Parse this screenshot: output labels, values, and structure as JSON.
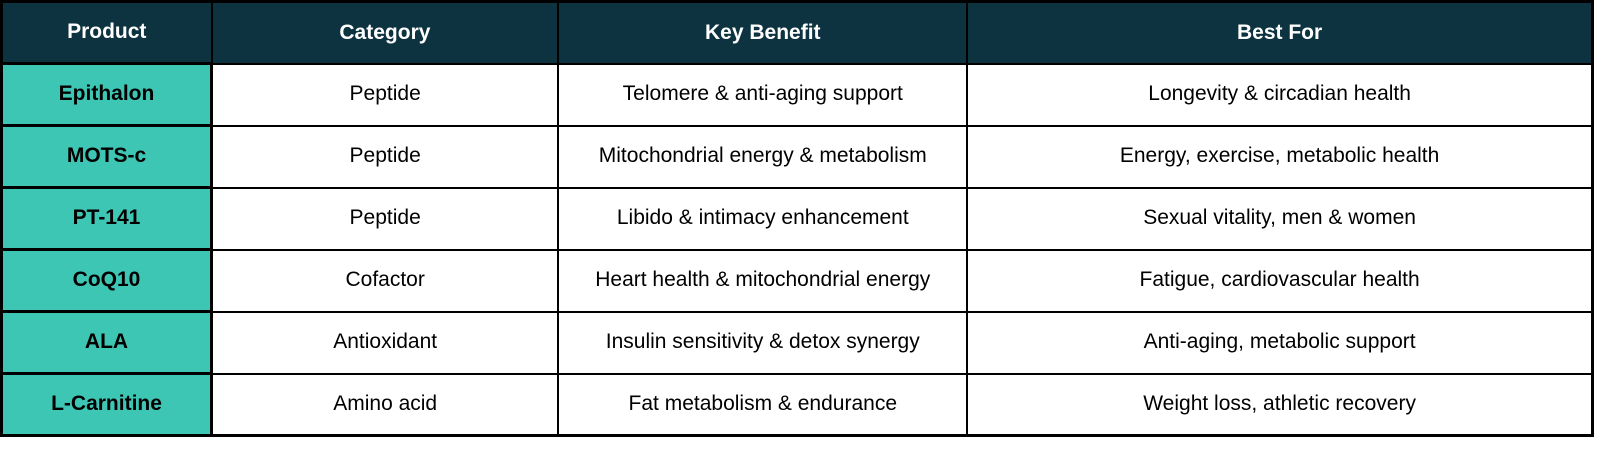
{
  "table": {
    "columns": [
      {
        "label": "Product"
      },
      {
        "label": "Category"
      },
      {
        "label": "Key Benefit"
      },
      {
        "label": "Best For"
      }
    ],
    "rows": [
      {
        "product": "Epithalon",
        "category": "Peptide",
        "key_benefit": "Telomere & anti-aging support",
        "best_for": "Longevity & circadian health"
      },
      {
        "product": "MOTS-c",
        "category": "Peptide",
        "key_benefit": "Mitochondrial energy & metabolism",
        "best_for": "Energy, exercise, metabolic health"
      },
      {
        "product": "PT-141",
        "category": "Peptide",
        "key_benefit": "Libido & intimacy enhancement",
        "best_for": "Sexual vitality, men & women"
      },
      {
        "product": "CoQ10",
        "category": "Cofactor",
        "key_benefit": "Heart health & mitochondrial energy",
        "best_for": "Fatigue, cardiovascular health"
      },
      {
        "product": "ALA",
        "category": "Antioxidant",
        "key_benefit": "Insulin sensitivity & detox synergy",
        "best_for": "Anti-aging, metabolic support"
      },
      {
        "product": "L-Carnitine",
        "category": "Amino acid",
        "key_benefit": "Fat metabolism & endurance",
        "best_for": "Weight loss, athletic recovery"
      }
    ]
  },
  "colors": {
    "header_bg": "#0e3340",
    "product_bg": "#3ec6b4",
    "border": "#000000",
    "header_text": "#ffffff",
    "body_text": "#000000"
  }
}
